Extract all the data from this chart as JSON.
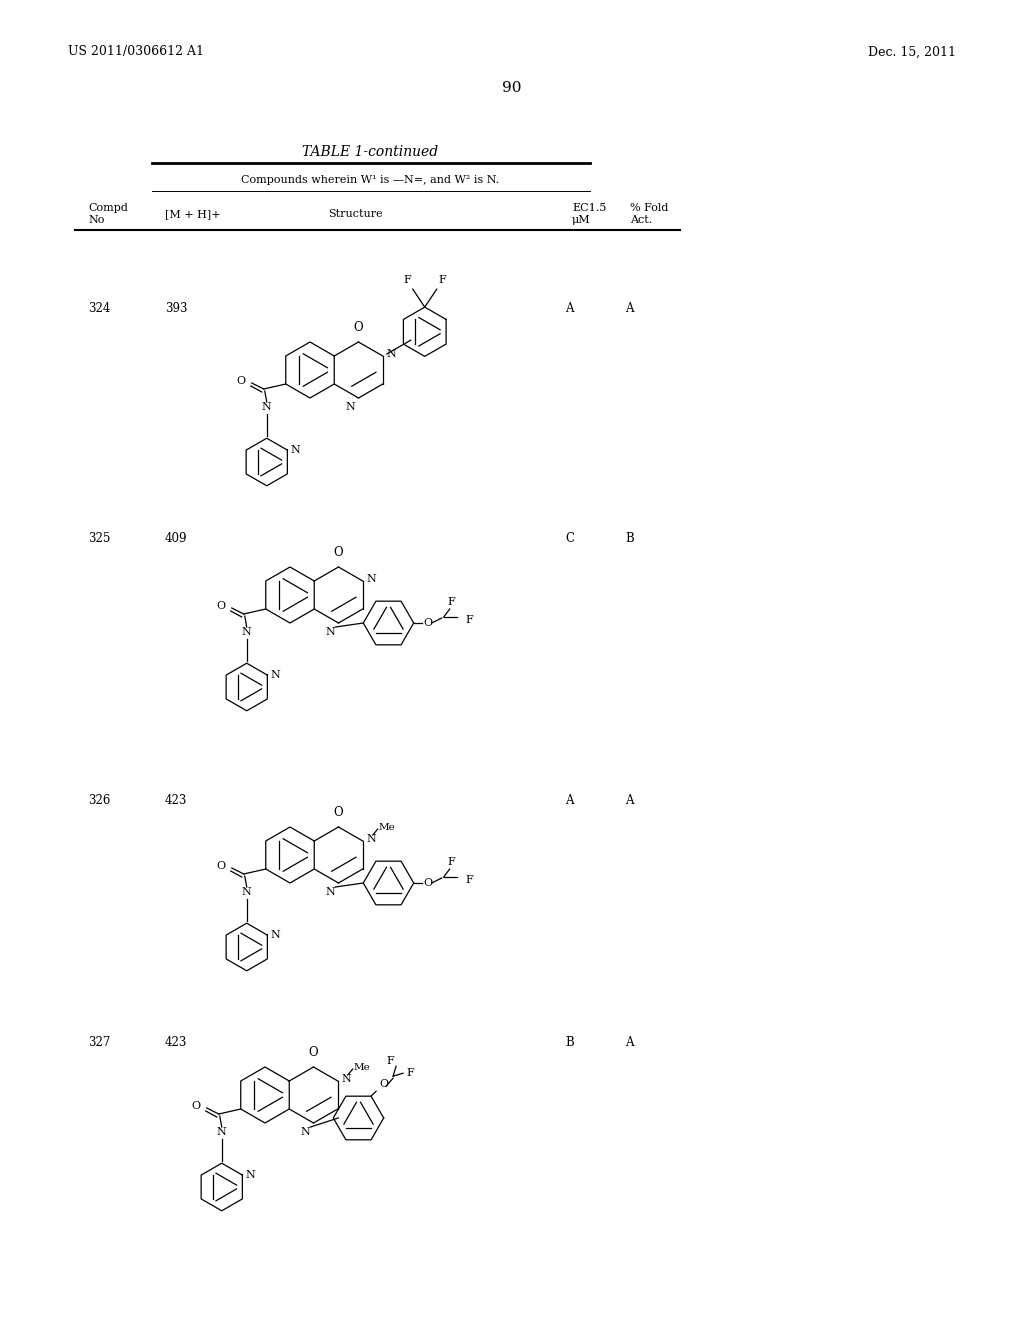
{
  "page_number": "90",
  "patent_number": "US 2011/0306612 A1",
  "patent_date": "Dec. 15, 2011",
  "table_title": "TABLE 1-continued",
  "table_subtitle": "Compounds wherein W¹ is —N=, and W² is N.",
  "bg_color": "#ffffff",
  "text_color": "#000000",
  "rows": [
    {
      "no": "324",
      "mh": "393",
      "ec": "A",
      "fold": "A"
    },
    {
      "no": "325",
      "mh": "409",
      "ec": "C",
      "fold": "B"
    },
    {
      "no": "326",
      "mh": "423",
      "ec": "A",
      "fold": "A"
    },
    {
      "no": "327",
      "mh": "423",
      "ec": "B",
      "fold": "A"
    }
  ]
}
